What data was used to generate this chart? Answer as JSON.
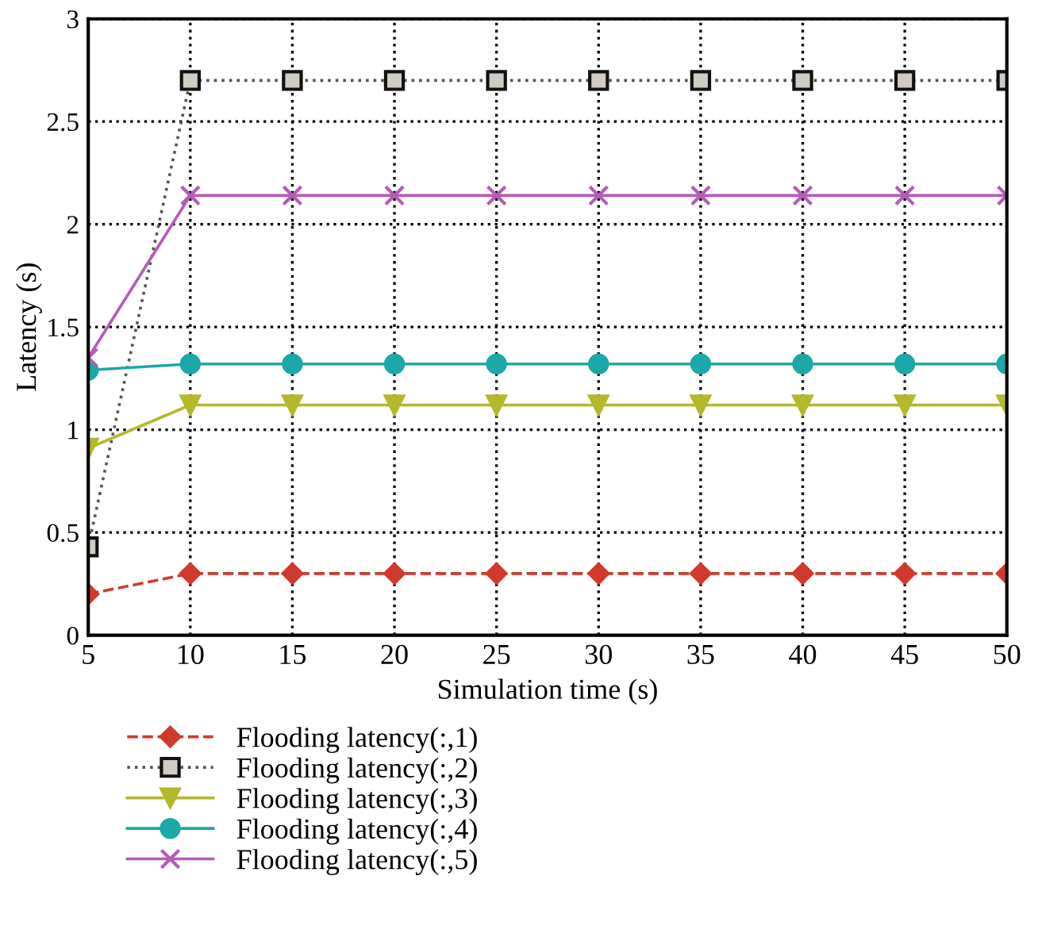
{
  "chart_data": {
    "type": "line",
    "xlabel": "Simulation time (s)",
    "ylabel": "Latency (s)",
    "x": [
      5,
      10,
      15,
      20,
      25,
      30,
      35,
      40,
      45,
      50
    ],
    "xlim": [
      5,
      50
    ],
    "xticks": [
      5,
      10,
      15,
      20,
      25,
      30,
      35,
      40,
      45,
      50
    ],
    "ylim": [
      0,
      3
    ],
    "yticks": [
      0,
      0.5,
      1,
      1.5,
      2,
      2.5,
      3
    ],
    "grid": true,
    "legend": "bottom",
    "series": [
      {
        "name": "Flooding latency(:,1)",
        "color": "#d03a2c",
        "marker": "diamond",
        "line_style": "dashed",
        "values": [
          0.2,
          0.3,
          0.3,
          0.3,
          0.3,
          0.3,
          0.3,
          0.3,
          0.3,
          0.3
        ]
      },
      {
        "name": "Flooding latency(:,2)",
        "color": "#555555",
        "marker": "square",
        "line_style": "dotted",
        "values": [
          0.43,
          2.7,
          2.7,
          2.7,
          2.7,
          2.7,
          2.7,
          2.7,
          2.7,
          2.7
        ]
      },
      {
        "name": "Flooding latency(:,3)",
        "color": "#b5b82a",
        "marker": "triangle",
        "line_style": "solid",
        "values": [
          0.91,
          1.12,
          1.12,
          1.12,
          1.12,
          1.12,
          1.12,
          1.12,
          1.12,
          1.12
        ]
      },
      {
        "name": "Flooding latency(:,4)",
        "color": "#1aa8a8",
        "marker": "circle",
        "line_style": "solid",
        "values": [
          1.29,
          1.32,
          1.32,
          1.32,
          1.32,
          1.32,
          1.32,
          1.32,
          1.32,
          1.32
        ]
      },
      {
        "name": "Flooding latency(:,5)",
        "color": "#b45cb8",
        "marker": "cross",
        "line_style": "solid",
        "values": [
          1.35,
          2.14,
          2.14,
          2.14,
          2.14,
          2.14,
          2.14,
          2.14,
          2.14,
          2.14
        ]
      }
    ]
  }
}
